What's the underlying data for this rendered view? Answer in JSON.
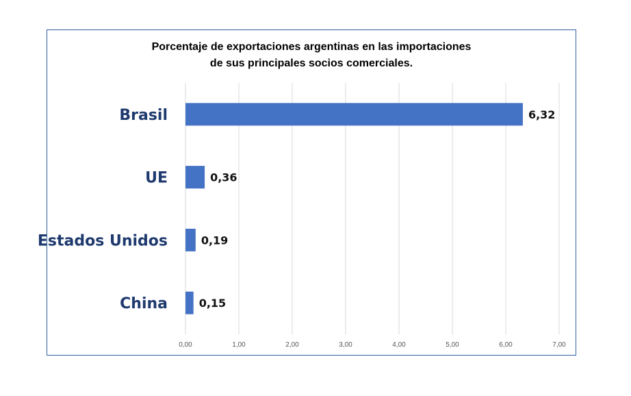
{
  "chart_data": {
    "type": "bar",
    "orientation": "horizontal",
    "title_lines": [
      "Porcentaje de exportaciones argentinas en las importaciones",
      "de sus principales socios comerciales."
    ],
    "categories": [
      "Brasil",
      "UE",
      "Estados Unidos",
      "China"
    ],
    "values": [
      6.32,
      0.36,
      0.19,
      0.15
    ],
    "value_labels": [
      "6,32",
      "0,36",
      "0,19",
      "0,15"
    ],
    "xlim": [
      0,
      7
    ],
    "x_ticks": [
      0,
      1,
      2,
      3,
      4,
      5,
      6,
      7
    ],
    "x_tick_labels": [
      "0,00",
      "1,00",
      "2,00",
      "3,00",
      "4,00",
      "5,00",
      "6,00",
      "7,00"
    ],
    "grid": "vertical",
    "legend": "none",
    "colors": {
      "bar": "#4472c4",
      "category_label": "#1f3a6e",
      "gridline": "#d9d9d9",
      "frame": "#2f5f9e"
    }
  }
}
